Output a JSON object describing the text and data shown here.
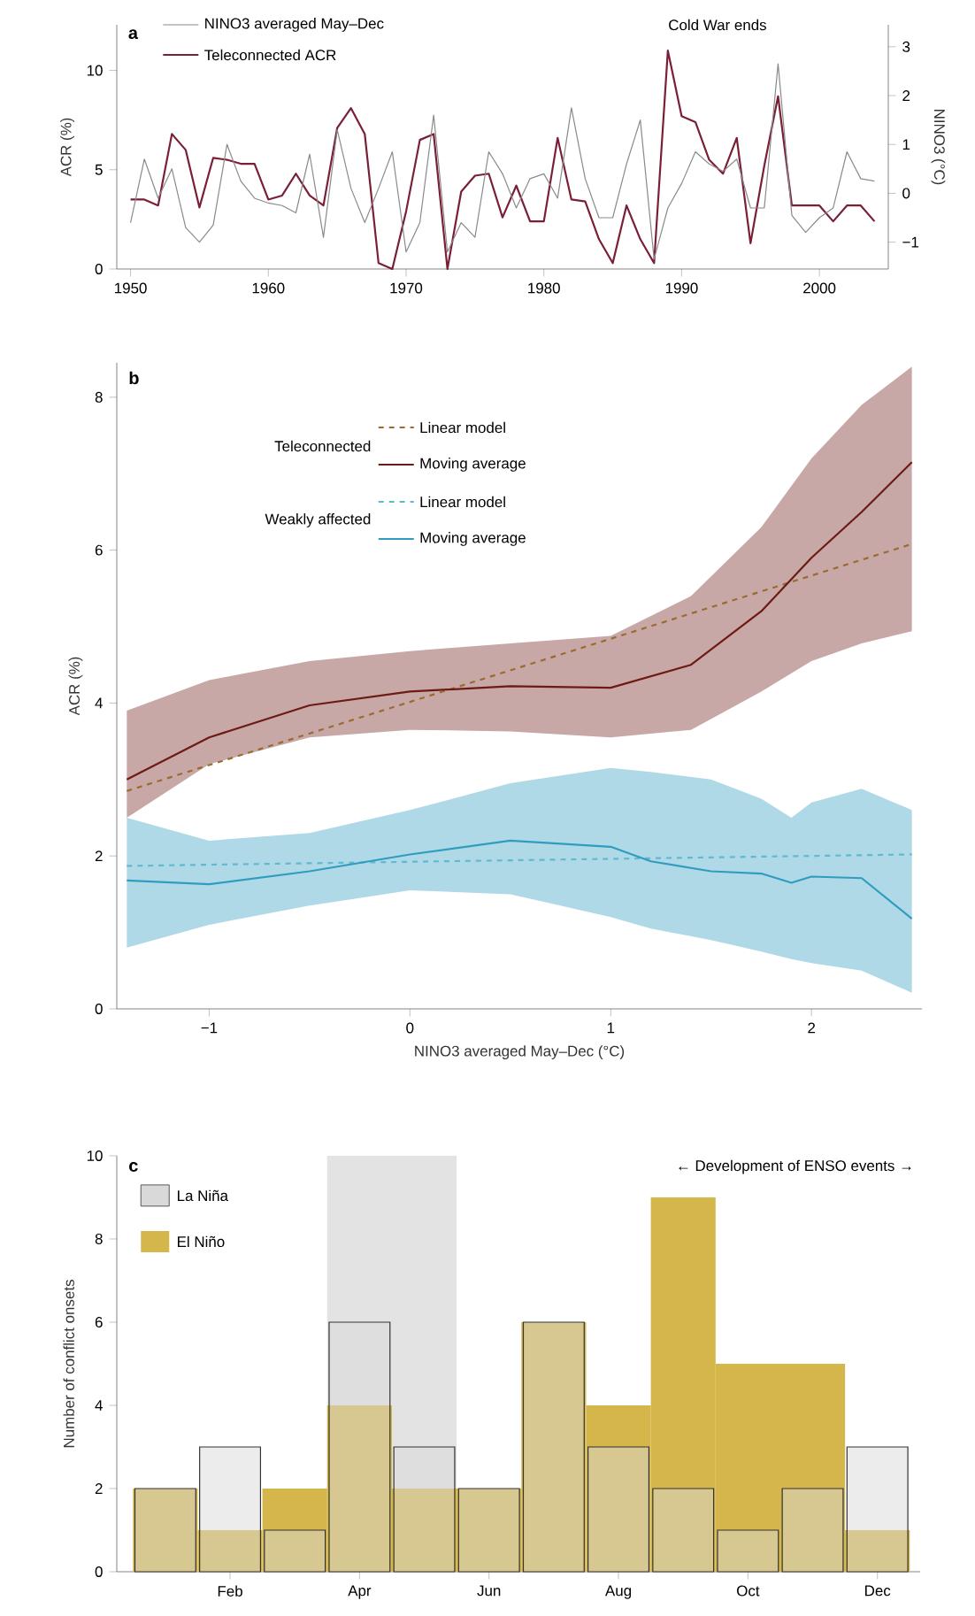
{
  "chart_data": [
    {
      "type": "line",
      "ylabel": "ACR (%)",
      "y2label": "NINO3 (°C)",
      "legend": "top left",
      "annotations": [
        "a",
        "Cold War ends"
      ],
      "xlim": [
        1949,
        2005
      ],
      "xticks": [
        1950,
        1960,
        1970,
        1980,
        1990,
        2000
      ],
      "ylim": [
        0,
        12.3
      ],
      "yticks": [
        0,
        5,
        10
      ],
      "y2lim": [
        -1.55,
        3.45
      ],
      "y2ticks": [
        {
          "value": -1,
          "label": "−1"
        },
        0,
        1,
        2,
        3
      ],
      "x": [
        1950,
        1951,
        1952,
        1953,
        1954,
        1955,
        1956,
        1957,
        1958,
        1959,
        1960,
        1961,
        1962,
        1963,
        1964,
        1965,
        1966,
        1967,
        1968,
        1969,
        1970,
        1971,
        1972,
        1973,
        1974,
        1975,
        1976,
        1977,
        1978,
        1979,
        1980,
        1981,
        1982,
        1983,
        1984,
        1985,
        1986,
        1987,
        1988,
        1989,
        1990,
        1991,
        1992,
        1993,
        1994,
        1995,
        1996,
        1997,
        1998,
        1999,
        2000,
        2001,
        2002,
        2003,
        2004
      ],
      "series": [
        {
          "name": "NINO3 averaged May–Dec",
          "color": "#8a8a8a",
          "axis": "y2",
          "values": [
            -0.6,
            0.7,
            -0.1,
            0.5,
            -0.7,
            -1.0,
            -0.65,
            1.0,
            0.25,
            -0.1,
            -0.2,
            -0.25,
            -0.4,
            0.8,
            -0.9,
            1.3,
            0.1,
            -0.6,
            0.1,
            0.85,
            -1.2,
            -0.6,
            1.6,
            -1.2,
            -0.6,
            -0.9,
            0.85,
            0.4,
            -0.3,
            0.3,
            0.4,
            -0.1,
            1.75,
            0.3,
            -0.5,
            -0.5,
            0.6,
            1.5,
            -1.35,
            -0.3,
            0.2,
            0.85,
            0.6,
            0.45,
            0.7,
            -0.3,
            -0.3,
            2.65,
            -0.45,
            -0.8,
            -0.5,
            -0.3,
            0.85,
            0.3,
            0.25
          ]
        },
        {
          "name": "Teleconnected ACR",
          "color": "#7a1f35",
          "values": [
            3.5,
            3.5,
            3.2,
            6.8,
            6.0,
            3.1,
            5.6,
            5.5,
            5.3,
            5.3,
            3.5,
            3.7,
            4.8,
            3.7,
            3.2,
            7.1,
            8.1,
            6.8,
            0.3,
            0,
            2.9,
            6.5,
            6.8,
            0,
            3.9,
            4.7,
            4.8,
            2.6,
            4.2,
            2.4,
            2.4,
            6.6,
            3.5,
            3.4,
            1.5,
            0.3,
            3.2,
            1.5,
            0.3,
            11,
            7.7,
            7.4,
            5.5,
            4.8,
            6.6,
            1.3,
            5.2,
            8.7,
            3.2,
            3.2,
            3.2,
            2.4,
            3.2,
            3.2,
            2.4
          ]
        }
      ]
    },
    {
      "type": "line",
      "xlabel": "NINO3 averaged May–Dec (°C)",
      "ylabel": "ACR (%)",
      "legend": "top left",
      "annotations": [
        "b",
        "Teleconnected",
        "Weakly affected"
      ],
      "xlim": [
        -1.46,
        2.55
      ],
      "xticks": [
        {
          "value": -1,
          "label": "−1"
        },
        0,
        1,
        2
      ],
      "ylim": [
        0,
        8.45
      ],
      "yticks": [
        0,
        2,
        4,
        6,
        8
      ],
      "series": [
        {
          "name": "Linear model",
          "color": "#9a6a30",
          "line_style": "dashed",
          "x": [
            -1.41,
            2.5
          ],
          "values": [
            2.85,
            6.08
          ]
        },
        {
          "name": "Moving average",
          "color": "#6e1a14",
          "x": [
            -1.41,
            -1.0,
            -0.5,
            0,
            0.5,
            1.0,
            1.4,
            1.75,
            2.0,
            2.25,
            2.5
          ],
          "values": [
            3.0,
            3.55,
            3.97,
            4.15,
            4.22,
            4.2,
            4.5,
            5.2,
            5.9,
            6.5,
            7.15
          ],
          "lower": [
            2.5,
            3.2,
            3.55,
            3.65,
            3.63,
            3.55,
            3.65,
            4.15,
            4.55,
            4.78,
            4.94
          ],
          "upper": [
            3.9,
            4.3,
            4.55,
            4.68,
            4.78,
            4.88,
            5.4,
            6.3,
            7.2,
            7.9,
            8.4
          ]
        },
        {
          "name": "Linear model",
          "color": "#5fb9d0",
          "line_style": "dashed",
          "x": [
            -1.41,
            2.5
          ],
          "values": [
            1.87,
            2.02
          ]
        },
        {
          "name": "Moving average",
          "color": "#2f9cc0",
          "x": [
            -1.41,
            -1.0,
            -0.5,
            0,
            0.5,
            1.0,
            1.2,
            1.5,
            1.75,
            1.9,
            2.0,
            2.25,
            2.5
          ],
          "values": [
            1.68,
            1.63,
            1.8,
            2.02,
            2.2,
            2.12,
            1.93,
            1.8,
            1.77,
            1.65,
            1.73,
            1.71,
            1.18
          ],
          "lower": [
            0.8,
            1.1,
            1.35,
            1.55,
            1.5,
            1.2,
            1.05,
            0.9,
            0.75,
            0.65,
            0.6,
            0.5,
            0.21
          ],
          "upper": [
            2.5,
            2.2,
            2.3,
            2.6,
            2.95,
            3.15,
            3.1,
            3.0,
            2.75,
            2.5,
            2.7,
            2.88,
            2.6
          ]
        }
      ]
    },
    {
      "type": "bar",
      "ylabel": "Number of conflict onsets",
      "legend": "top left",
      "annotations": [
        "c",
        "← Development of ENSO events →"
      ],
      "categories": [
        null,
        "Feb",
        null,
        "Apr",
        null,
        "Jun",
        null,
        "Aug",
        null,
        "Oct",
        null,
        "Dec"
      ],
      "ylim": [
        0,
        10
      ],
      "yticks": [
        0,
        2,
        4,
        6,
        8,
        10
      ],
      "series": [
        {
          "color": "#e3e3e3",
          "values": [
            null,
            null,
            null,
            10,
            10,
            null,
            null,
            null,
            null,
            null,
            null,
            null
          ]
        },
        {
          "name": "La Niña",
          "color": "#d9d9d9",
          "values": [
            2,
            3,
            1,
            6,
            3,
            2,
            6,
            3,
            2,
            1,
            2,
            3
          ]
        },
        {
          "name": "El Niño",
          "color": "#d4b64a",
          "values": [
            2,
            1,
            2,
            4,
            2,
            2,
            6,
            4,
            9,
            5,
            5,
            1
          ]
        }
      ]
    }
  ]
}
